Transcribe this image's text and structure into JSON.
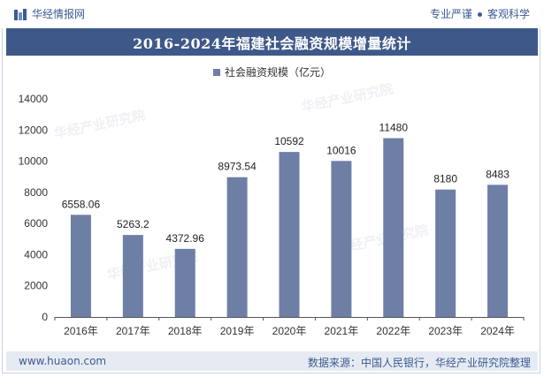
{
  "header": {
    "brand": "华经情报网",
    "tagline_left": "专业严谨",
    "tagline_right": "客观科学"
  },
  "footer": {
    "url": "www.huaon.com",
    "source": "数据来源：中国人民银行，华经产业研究院整理"
  },
  "colors": {
    "bar": "#6e7fa6",
    "title_bg": "#3e5889",
    "footer_bg": "#e6ebf3"
  },
  "chart_data": {
    "type": "bar",
    "title": "2016-2024年福建社会融资规模增量统计",
    "categories": [
      "2016年",
      "2017年",
      "2018年",
      "2019年",
      "2020年",
      "2021年",
      "2022年",
      "2023年",
      "2024年"
    ],
    "series": [
      {
        "name": "社会融资规模（亿元）",
        "values": [
          6558.06,
          5263.2,
          4372.96,
          8973.54,
          10592,
          10016,
          11480,
          8180,
          8483
        ],
        "labels": [
          "6558.06",
          "5263.2",
          "4372.96",
          "8973.54",
          "10592",
          "10016",
          "11480",
          "8180",
          "8483"
        ]
      }
    ],
    "ylim": [
      0,
      14000
    ],
    "yticks": [
      0,
      2000,
      4000,
      6000,
      8000,
      10000,
      12000,
      14000
    ],
    "legend_position": "top-center",
    "grid": false
  }
}
